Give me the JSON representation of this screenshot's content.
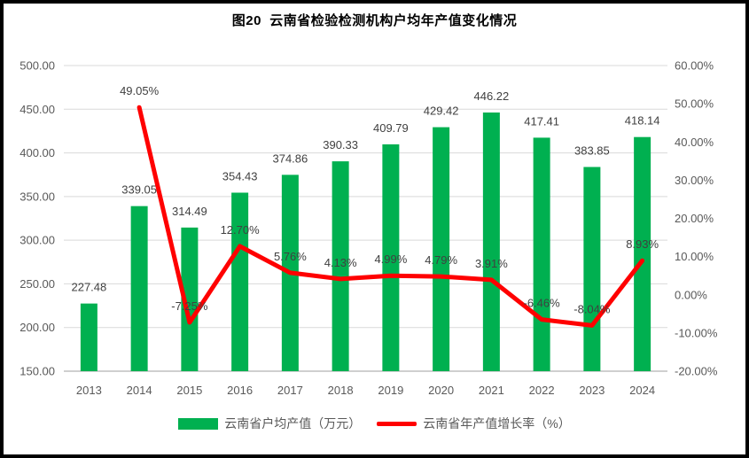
{
  "chart_data": {
    "type": "combo-bar-line",
    "title": "图20  云南省检验检测机构户均年产值变化情况",
    "categories": [
      "2013",
      "2014",
      "2015",
      "2016",
      "2017",
      "2018",
      "2019",
      "2020",
      "2021",
      "2022",
      "2023",
      "2024"
    ],
    "series": [
      {
        "name": "云南省户均产值（万元）",
        "type": "bar",
        "axis": "left",
        "color": "#00B050",
        "values": [
          227.48,
          339.05,
          314.49,
          354.43,
          374.86,
          390.33,
          409.79,
          429.42,
          446.22,
          417.41,
          383.85,
          418.14
        ]
      },
      {
        "name": "云南省年产值增长率（%）",
        "type": "line",
        "axis": "right",
        "color": "#FF0000",
        "values": [
          null,
          49.05,
          -7.25,
          12.7,
          5.76,
          4.13,
          4.99,
          4.79,
          3.91,
          -6.46,
          -8.04,
          8.93
        ]
      }
    ],
    "left_axis": {
      "min": 150,
      "max": 500,
      "step": 50,
      "tick_labels": [
        "150.00",
        "200.00",
        "250.00",
        "300.00",
        "350.00",
        "400.00",
        "450.00",
        "500.00"
      ]
    },
    "right_axis": {
      "min": -20,
      "max": 60,
      "step": 10,
      "tick_labels": [
        "-20.00%",
        "-10.00%",
        "0.00%",
        "10.00%",
        "20.00%",
        "30.00%",
        "40.00%",
        "50.00%",
        "60.00%"
      ]
    },
    "grid": true,
    "legend_position": "bottom",
    "colors": {
      "grid": "#D9D9D9",
      "axis_line": "#BFBFBF",
      "tick_text": "#595959",
      "data_label_text": "#404040",
      "background": "#FFFFFF",
      "frame": "#000000"
    }
  }
}
